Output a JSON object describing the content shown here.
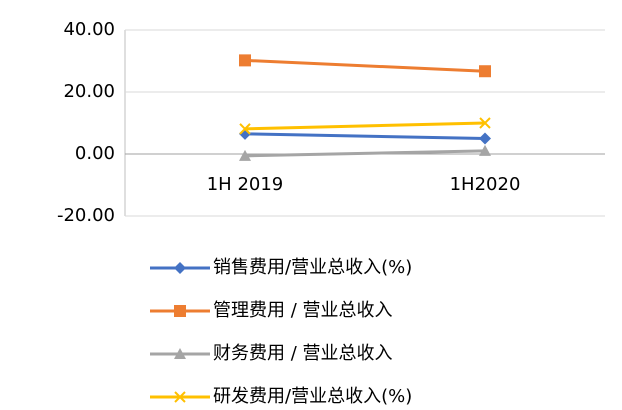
{
  "chart_data": {
    "type": "line",
    "categories": [
      "1H 2019",
      "1H2020"
    ],
    "series": [
      {
        "name": "销售费用/营业总收入(%)",
        "color": "#4472c4",
        "marker": "diamond",
        "values": [
          6.5,
          5.0
        ]
      },
      {
        "name": "管理费用 / 营业总收入",
        "color": "#ed7d31",
        "marker": "square",
        "values": [
          30.2,
          26.7
        ]
      },
      {
        "name": "财务费用 / 营业总收入",
        "color": "#a5a5a5",
        "marker": "triangle",
        "values": [
          -0.6,
          1.0
        ]
      },
      {
        "name": "研发费用/营业总收入(%)",
        "color": "#ffc000",
        "marker": "x",
        "values": [
          8.1,
          10.0
        ]
      }
    ],
    "ylim": [
      -20,
      40
    ],
    "yticks": [
      {
        "value": -20,
        "label": "-20.00"
      },
      {
        "value": 0,
        "label": "0.00"
      },
      {
        "value": 20,
        "label": "20.00"
      },
      {
        "value": 40,
        "label": "40.00"
      }
    ],
    "grid": true,
    "legend": "bottom"
  }
}
